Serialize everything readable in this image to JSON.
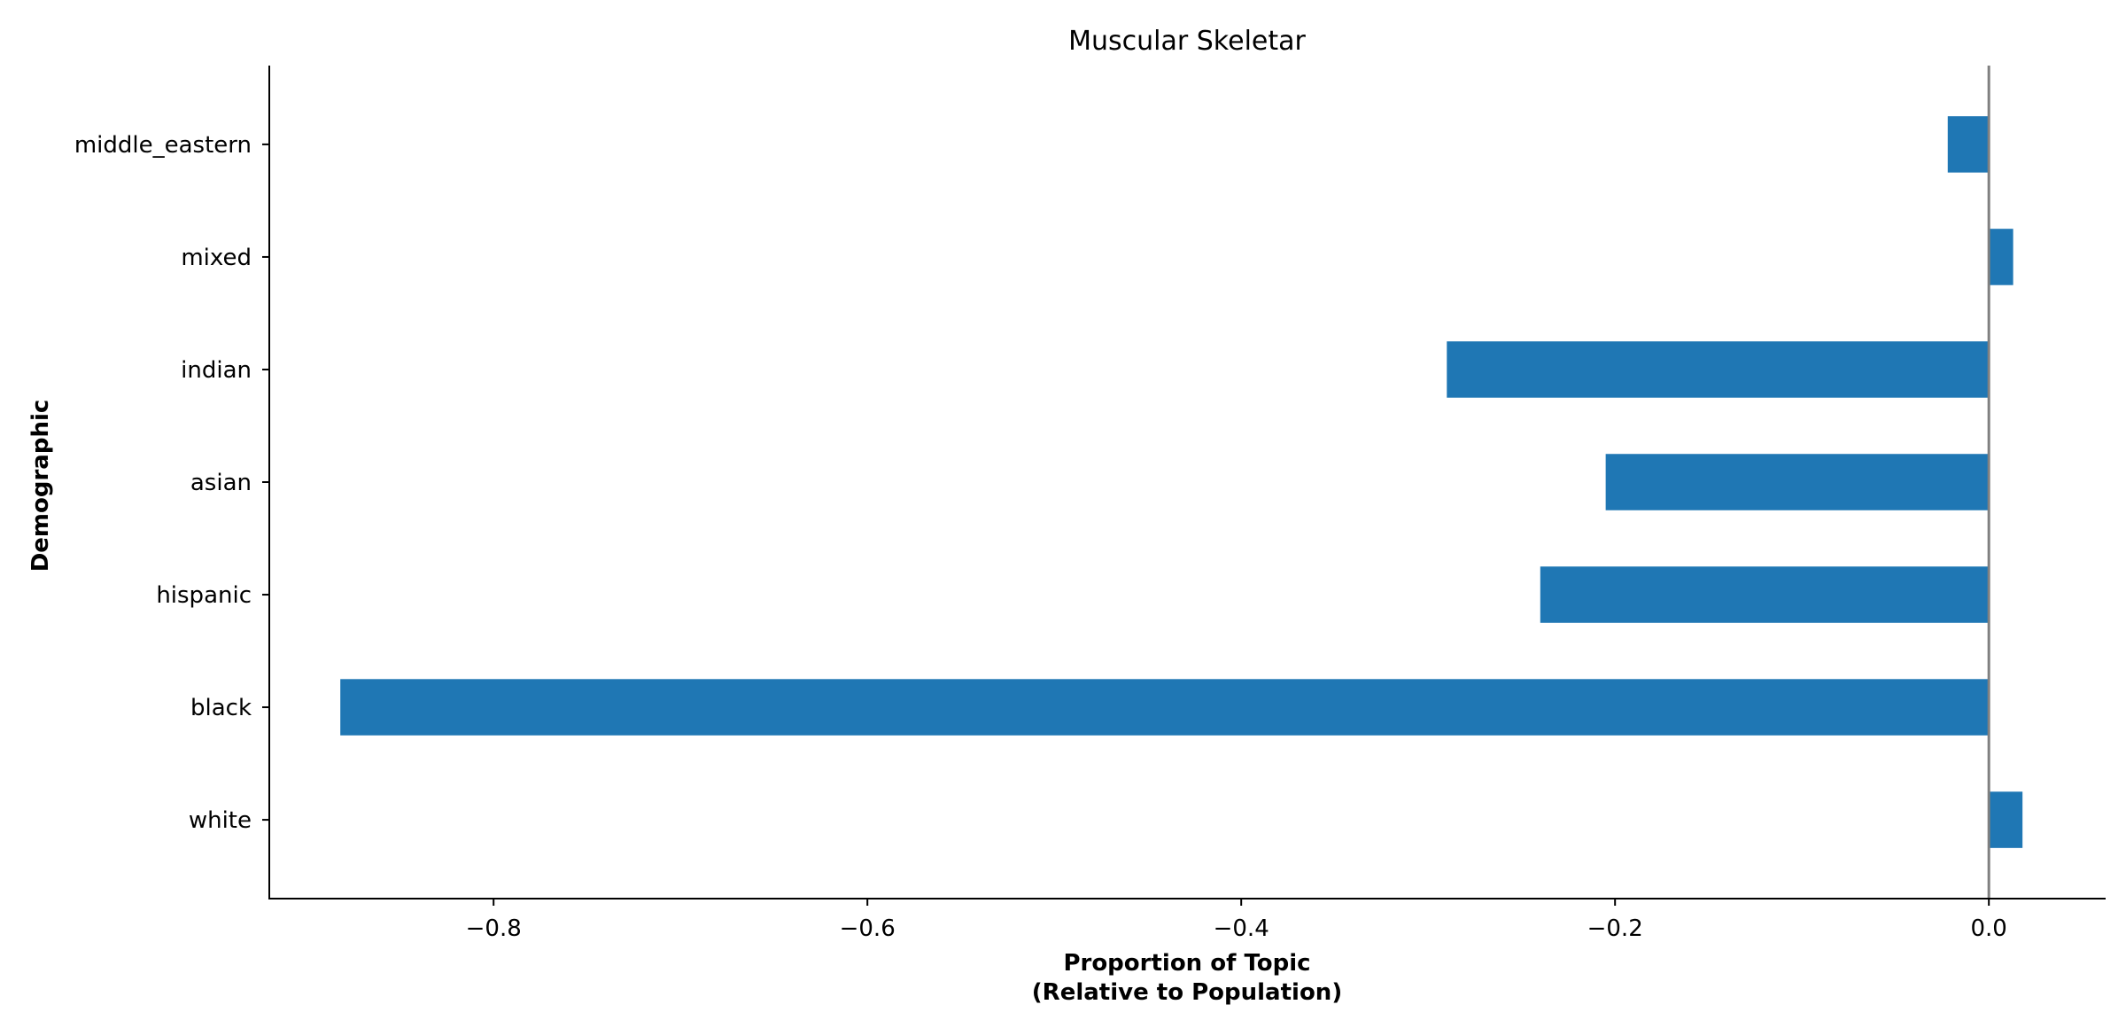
{
  "chart_data": {
    "type": "bar",
    "orientation": "horizontal",
    "title": "Muscular Skeletar",
    "xlabel_lines": [
      "Proportion of Topic",
      "(Relative to Population)"
    ],
    "ylabel": "Demographic",
    "categories": [
      "white",
      "black",
      "hispanic",
      "asian",
      "indian",
      "mixed",
      "middle_eastern"
    ],
    "values": [
      0.018,
      -0.882,
      -0.24,
      -0.205,
      -0.29,
      0.013,
      -0.022
    ],
    "xlim": [
      -0.92,
      0.062
    ],
    "xticks": [
      -0.8,
      -0.6,
      -0.4,
      -0.2,
      0.0
    ],
    "xtick_labels": [
      "−0.8",
      "−0.6",
      "−0.4",
      "−0.2",
      "0.0"
    ],
    "bar_color": "#1f77b4",
    "zero_line_color": "#808080",
    "grid": false,
    "legend": "none"
  }
}
